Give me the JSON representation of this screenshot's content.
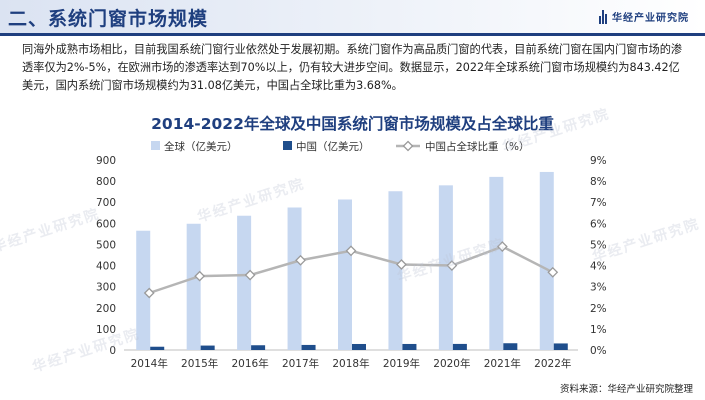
{
  "header": {
    "title": "二、系统门窗市场规模",
    "logo_text": "华经产业研究院"
  },
  "paragraph": "同海外成熟市场相比，目前我国系统门窗行业依然处于发展初期。系统门窗作为高品质门窗的代表，目前系统门窗在国内门窗市场的渗透率仅为2%-5%，在欧洲市场的渗透率达到70%以上，仍有较大进步空间。数据显示，2022年全球系统门窗市场规模约为843.42亿美元，国内系统门窗市场规模约为31.08亿美元，中国占全球比重为3.68%。",
  "watermark": "华经产业研究院",
  "source": "资料来源：华经产业研究院整理",
  "colors": {
    "global": "#c6d7f0",
    "china": "#1f4e8c",
    "share": "#b5b5b5",
    "title": "#1f3f7f"
  },
  "chart_data": {
    "type": "bar",
    "title": "2014-2022年全球及中国系统门窗市场规模及占全球比重",
    "categories": [
      "2014年",
      "2015年",
      "2016年",
      "2017年",
      "2018年",
      "2019年",
      "2020年",
      "2021年",
      "2022年"
    ],
    "series": [
      {
        "name": "全球（亿美元）",
        "type": "bar",
        "axis": "left",
        "values": [
          565,
          598,
          636,
          675,
          713,
          752,
          780,
          820,
          843.42
        ]
      },
      {
        "name": "中国（亿美元）",
        "type": "bar",
        "axis": "left",
        "values": [
          15.5,
          21,
          22.5,
          24,
          28.5,
          28.6,
          28.8,
          32,
          31.08
        ]
      },
      {
        "name": "中国占全球比重（%）",
        "type": "line",
        "axis": "right",
        "values": [
          2.7,
          3.5,
          3.55,
          4.25,
          4.7,
          4.05,
          4.0,
          4.9,
          3.68
        ]
      }
    ],
    "yticks_left": [
      "0",
      "100",
      "200",
      "300",
      "400",
      "500",
      "600",
      "700",
      "800",
      "900"
    ],
    "yticks_right": [
      "0%",
      "1%",
      "2%",
      "3%",
      "4%",
      "5%",
      "6%",
      "7%",
      "8%",
      "9%"
    ],
    "ylim_left": [
      0,
      900
    ],
    "ylim_right": [
      0,
      9
    ],
    "legend_position": "top",
    "grid": false
  }
}
